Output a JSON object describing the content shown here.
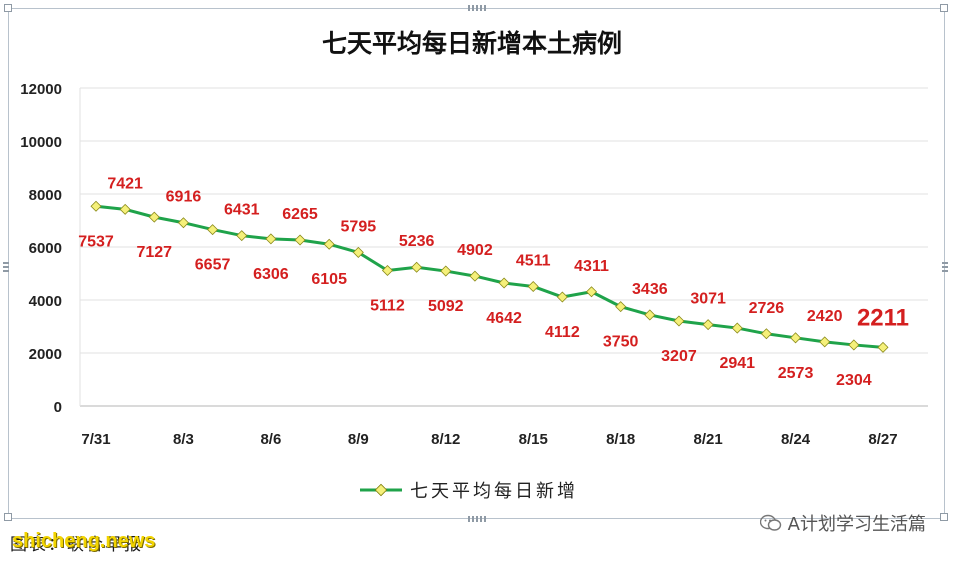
{
  "chart_data": {
    "type": "line",
    "title": "七天平均每日新增本土病例",
    "ylim": [
      0,
      12000
    ],
    "yticks": [
      0,
      2000,
      4000,
      6000,
      8000,
      10000,
      12000
    ],
    "x": [
      "7/31",
      "8/1",
      "8/2",
      "8/3",
      "8/4",
      "8/5",
      "8/6",
      "8/7",
      "8/8",
      "8/9",
      "8/10",
      "8/11",
      "8/12",
      "8/13",
      "8/14",
      "8/15",
      "8/16",
      "8/17",
      "8/18",
      "8/19",
      "8/20",
      "8/21",
      "8/22",
      "8/23",
      "8/24",
      "8/25",
      "8/26",
      "8/27"
    ],
    "xtick_labels": [
      "7/31",
      "8/3",
      "8/6",
      "8/9",
      "8/12",
      "8/15",
      "8/18",
      "8/21",
      "8/24",
      "8/27"
    ],
    "series": [
      {
        "name": "七天平均每日新增",
        "color": "#1fa34a",
        "marker_color": "#f5f07a",
        "values": [
          7537,
          7421,
          7127,
          6916,
          6657,
          6431,
          6306,
          6265,
          6105,
          5795,
          5112,
          5236,
          5092,
          4902,
          4642,
          4511,
          4112,
          4311,
          3750,
          3436,
          3207,
          3071,
          2941,
          2726,
          2573,
          2420,
          2304,
          2211
        ]
      }
    ],
    "data_label_color": "#d41f1f",
    "last_label_emphasis": true,
    "legend_position": "bottom",
    "grid": true
  },
  "footer": {
    "source": "图表：联合早报",
    "site_watermark": "shicheng.news",
    "account_watermark": "A计划学习生活篇"
  }
}
